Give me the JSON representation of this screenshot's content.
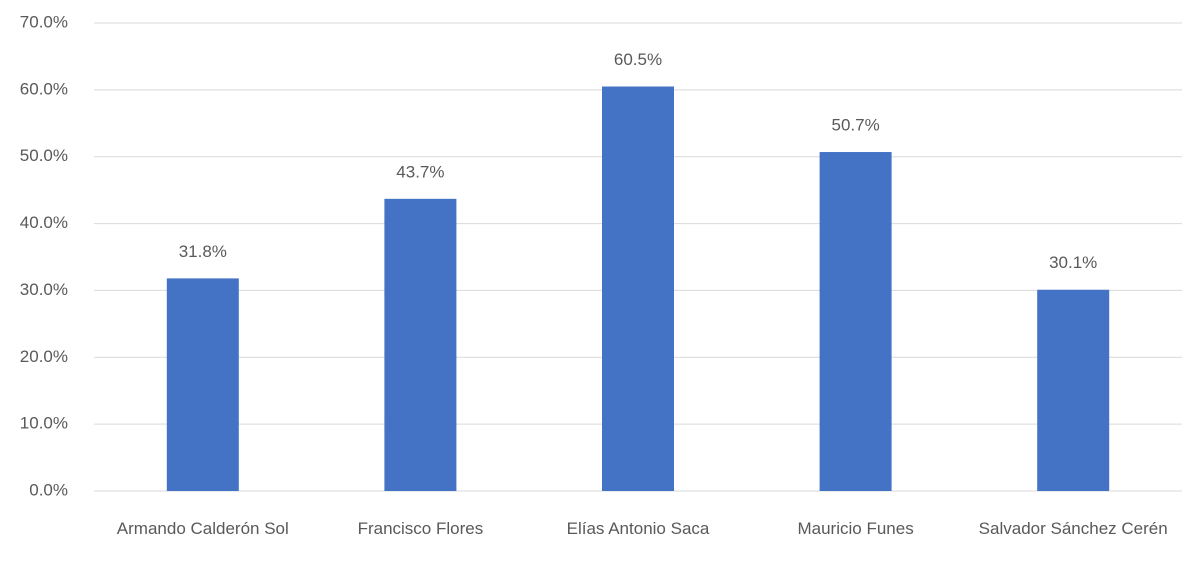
{
  "chart_data": {
    "type": "bar",
    "categories": [
      "Armando Calderón Sol",
      "Francisco Flores",
      "Elías Antonio Saca",
      "Mauricio Funes",
      "Salvador Sánchez Cerén"
    ],
    "values": [
      31.8,
      43.7,
      60.5,
      50.7,
      30.1
    ],
    "value_labels": [
      "31.8%",
      "43.7%",
      "60.5%",
      "50.7%",
      "30.1%"
    ],
    "color": "#4472c4",
    "ylim": [
      0,
      70
    ],
    "yticks": [
      {
        "value": 0,
        "label": "0.0%"
      },
      {
        "value": 10,
        "label": "10.0%"
      },
      {
        "value": 20,
        "label": "20.0%"
      },
      {
        "value": 30,
        "label": "30.0%"
      },
      {
        "value": 40,
        "label": "40.0%"
      },
      {
        "value": 50,
        "label": "50.0%"
      },
      {
        "value": 60,
        "label": "60.0%"
      },
      {
        "value": 70,
        "label": "70.0%"
      }
    ],
    "grid": true
  }
}
